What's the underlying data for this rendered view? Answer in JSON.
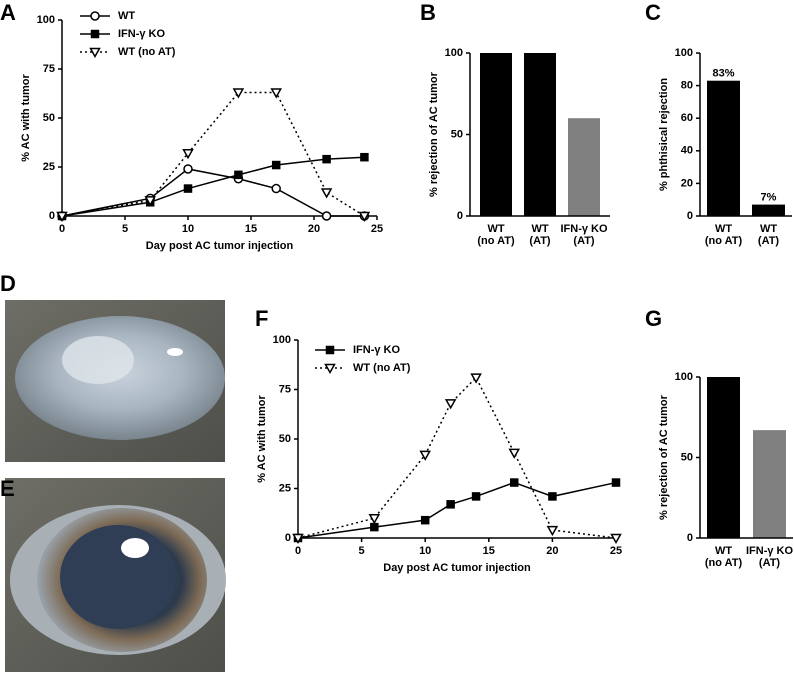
{
  "chart_data": [
    {
      "type": "line",
      "panel": "A",
      "x_label": "Day post AC tumor injection",
      "y_label": "% AC with tumor",
      "x": [
        0,
        7,
        10,
        14,
        17,
        21,
        24
      ],
      "series": [
        {
          "name": "WT",
          "color": "#000000",
          "marker": "circle",
          "dashed": false,
          "values": [
            0,
            9,
            24,
            19,
            14,
            0,
            0
          ]
        },
        {
          "name": "IFN-γ KO",
          "color": "#000000",
          "marker": "square",
          "dashed": false,
          "values": [
            0,
            7,
            14,
            21,
            26,
            29,
            30
          ]
        },
        {
          "name": "WT (no AT)",
          "color": "#000000",
          "marker": "triangle-down",
          "dashed": true,
          "values": [
            0,
            8,
            32,
            63,
            63,
            12,
            0
          ]
        }
      ],
      "xlim": [
        0,
        25
      ],
      "xticks": [
        0,
        5,
        10,
        15,
        20,
        25
      ],
      "ylim": [
        0,
        100
      ],
      "yticks": [
        0,
        25,
        50,
        75,
        100
      ]
    },
    {
      "type": "bar",
      "panel": "B",
      "y_label": "% rejection of AC tumor",
      "categories": [
        [
          "WT",
          "(no AT)"
        ],
        [
          "WT",
          "(AT)"
        ],
        [
          "IFN-γ KO",
          "(AT)"
        ]
      ],
      "values": [
        100,
        100,
        60
      ],
      "colors": [
        "#000000",
        "#000000",
        "#808080"
      ],
      "ylim": [
        0,
        100
      ],
      "yticks": [
        0,
        50,
        100
      ]
    },
    {
      "type": "bar",
      "panel": "C",
      "y_label": "% phthisical rejection",
      "categories": [
        [
          "WT",
          "(no AT)"
        ],
        [
          "WT",
          "(AT)"
        ]
      ],
      "values": [
        83,
        7
      ],
      "value_labels": [
        "83%",
        "7%"
      ],
      "colors": [
        "#000000",
        "#000000"
      ],
      "ylim": [
        0,
        100
      ],
      "yticks": [
        0,
        20,
        40,
        60,
        80,
        100
      ]
    },
    {
      "type": "line",
      "panel": "F",
      "x_label": "Day post AC tumor injection",
      "y_label": "% AC with tumor",
      "x": [
        0,
        6,
        10,
        12,
        14,
        17,
        20,
        25
      ],
      "series": [
        {
          "name": "IFN-γ KO",
          "color": "#000000",
          "marker": "square",
          "dashed": false,
          "values": [
            0,
            5.5,
            9,
            17,
            21,
            28,
            21,
            28
          ]
        },
        {
          "name": "WT (no AT)",
          "color": "#000000",
          "marker": "triangle-down",
          "dashed": true,
          "values": [
            0,
            10,
            42,
            68,
            81,
            43,
            4,
            0
          ]
        }
      ],
      "xlim": [
        0,
        25
      ],
      "xticks": [
        0,
        5,
        10,
        15,
        20,
        25
      ],
      "ylim": [
        0,
        100
      ],
      "yticks": [
        0,
        25,
        50,
        75,
        100
      ]
    },
    {
      "type": "bar",
      "panel": "G",
      "y_label": "% rejection of AC tumor",
      "categories": [
        [
          "WT",
          "(no AT)"
        ],
        [
          "IFN-γ KO",
          "(AT)"
        ]
      ],
      "values": [
        100,
        67
      ],
      "colors": [
        "#000000",
        "#808080"
      ],
      "ylim": [
        0,
        100
      ],
      "yticks": [
        0,
        50,
        100
      ]
    }
  ],
  "photos": [
    {
      "panel": "D"
    },
    {
      "panel": "E"
    }
  ]
}
